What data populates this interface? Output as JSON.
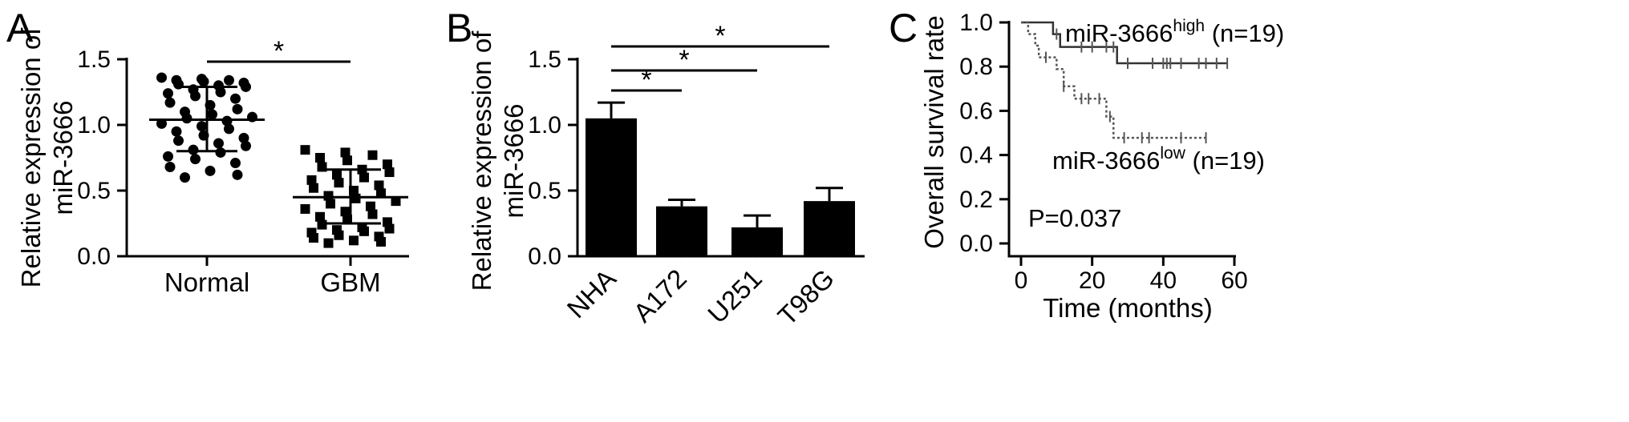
{
  "chart_data": [
    {
      "panel": "A",
      "type": "scatter",
      "ylabel": [
        "Relative expression of",
        "miR-3666"
      ],
      "ylim": [
        0,
        1.5
      ],
      "yticks": [
        "0.0",
        "0.5",
        "1.0",
        "1.5"
      ],
      "categories": [
        "Normal",
        "GBM"
      ],
      "groups": [
        {
          "name": "Normal",
          "marker": "circle",
          "mean": 1.04,
          "sd_low": 0.8,
          "sd_high": 1.29,
          "values": [
            1.36,
            1.35,
            1.34,
            1.34,
            1.33,
            1.32,
            1.31,
            1.3,
            1.29,
            1.27,
            1.25,
            1.24,
            1.22,
            1.2,
            1.17,
            1.15,
            1.12,
            1.1,
            1.08,
            1.06,
            1.05,
            1.03,
            1.01,
            0.99,
            0.97,
            0.95,
            0.92,
            0.9,
            0.88,
            0.86,
            0.84,
            0.81,
            0.79,
            0.76,
            0.74,
            0.71,
            0.68,
            0.65,
            0.62,
            0.6
          ]
        },
        {
          "name": "GBM",
          "marker": "square",
          "mean": 0.45,
          "sd_low": 0.25,
          "sd_high": 0.66,
          "values": [
            0.81,
            0.79,
            0.77,
            0.75,
            0.73,
            0.7,
            0.68,
            0.66,
            0.64,
            0.62,
            0.6,
            0.58,
            0.56,
            0.54,
            0.52,
            0.5,
            0.48,
            0.46,
            0.44,
            0.42,
            0.4,
            0.38,
            0.36,
            0.34,
            0.32,
            0.3,
            0.28,
            0.26,
            0.24,
            0.22,
            0.21,
            0.2,
            0.19,
            0.18,
            0.16,
            0.15,
            0.14,
            0.12,
            0.11,
            0.1
          ]
        }
      ],
      "significance": [
        {
          "from": "Normal",
          "to": "GBM",
          "label": "*"
        }
      ]
    },
    {
      "panel": "B",
      "type": "bar",
      "ylabel": [
        "Relative expression of",
        "miR-3666"
      ],
      "ylim": [
        0,
        1.5
      ],
      "yticks": [
        "0.0",
        "0.5",
        "1.0",
        "1.5"
      ],
      "categories": [
        "NHA",
        "A172",
        "U251",
        "T98G"
      ],
      "values": [
        1.05,
        0.38,
        0.22,
        0.42
      ],
      "errors": [
        0.12,
        0.05,
        0.09,
        0.1
      ],
      "significance": [
        {
          "from": "NHA",
          "to": "A172",
          "label": "*"
        },
        {
          "from": "NHA",
          "to": "U251",
          "label": "*"
        },
        {
          "from": "NHA",
          "to": "T98G",
          "label": "*"
        }
      ]
    },
    {
      "panel": "C",
      "type": "line",
      "ylabel": "Overall survival rate",
      "xlabel": "Time (months)",
      "xlim": [
        0,
        60
      ],
      "ylim": [
        0,
        1.0
      ],
      "xticks": [
        "0",
        "20",
        "40",
        "60"
      ],
      "yticks": [
        "0.0",
        "0.2",
        "0.4",
        "0.6",
        "0.8",
        "1.0"
      ],
      "annotation": "P=0.037",
      "series": [
        {
          "name": "miR-3666high (n=19)",
          "label_main": "miR-3666",
          "label_sup": "high",
          "label_tail": " (n=19)",
          "style": "solid",
          "steps": [
            [
              0,
              1.0
            ],
            [
              9,
              1.0
            ],
            [
              9,
              0.947
            ],
            [
              11,
              0.947
            ],
            [
              11,
              0.889
            ],
            [
              27,
              0.889
            ],
            [
              27,
              0.815
            ],
            [
              58,
              0.815
            ]
          ],
          "censored": [
            [
              10,
              0.947
            ],
            [
              17,
              0.889
            ],
            [
              20,
              0.889
            ],
            [
              24,
              0.889
            ],
            [
              26,
              0.889
            ],
            [
              30,
              0.815
            ],
            [
              37,
              0.815
            ],
            [
              40,
              0.815
            ],
            [
              41,
              0.815
            ],
            [
              42,
              0.815
            ],
            [
              45,
              0.815
            ],
            [
              50,
              0.815
            ],
            [
              52,
              0.815
            ],
            [
              55,
              0.815
            ],
            [
              58,
              0.815
            ]
          ]
        },
        {
          "name": "miR-3666low (n=19)",
          "label_main": "miR-3666",
          "label_sup": "low",
          "label_tail": " (n=19)",
          "style": "dotted",
          "steps": [
            [
              0,
              1.0
            ],
            [
              2,
              1.0
            ],
            [
              2,
              0.947
            ],
            [
              4,
              0.947
            ],
            [
              4,
              0.895
            ],
            [
              5,
              0.895
            ],
            [
              5,
              0.842
            ],
            [
              10,
              0.842
            ],
            [
              10,
              0.789
            ],
            [
              12,
              0.789
            ],
            [
              12,
              0.711
            ],
            [
              15,
              0.711
            ],
            [
              15,
              0.655
            ],
            [
              24,
              0.655
            ],
            [
              24,
              0.574
            ],
            [
              26,
              0.574
            ],
            [
              26,
              0.478
            ],
            [
              52,
              0.478
            ]
          ],
          "censored": [
            [
              7,
              0.842
            ],
            [
              12,
              0.711
            ],
            [
              17,
              0.655
            ],
            [
              19,
              0.655
            ],
            [
              22,
              0.655
            ],
            [
              25,
              0.574
            ],
            [
              29,
              0.478
            ],
            [
              34,
              0.478
            ],
            [
              36,
              0.478
            ],
            [
              45,
              0.478
            ],
            [
              52,
              0.478
            ]
          ]
        }
      ]
    }
  ]
}
